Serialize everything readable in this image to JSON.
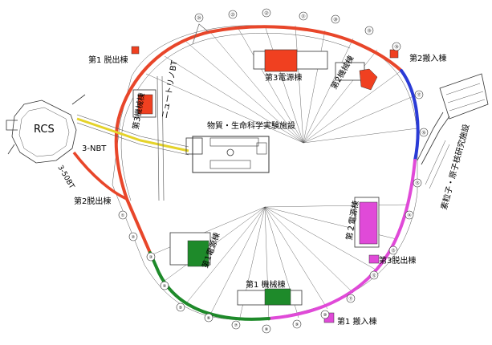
{
  "colors": {
    "arc_red": "#e8462a",
    "arc_blue": "#2a3bd6",
    "arc_magenta": "#e04ad8",
    "arc_green": "#1e8a2a",
    "transport_yellow": "#e5d32a",
    "building_red": "#f04020",
    "building_green": "#1e8a2a",
    "building_magenta": "#e04ad8"
  },
  "labels": {
    "rcs": "RCS",
    "third_power": "第3電源棟",
    "second_machine": "第2機械棟",
    "second_carry_in": "第2搬入棟",
    "first_extraction": "第1 脱出棟",
    "third_machine": "第3機械棟",
    "mlf": "物質・生命科学実験施設",
    "neutrino_bt": "ニュートリノBT",
    "nbt3": "3-NBT",
    "bt_3_50": "3-50BT",
    "second_extraction": "第2脱出棟",
    "hadron": "素粒子・原子核研究施設",
    "second_power": "第２電源棟",
    "third_extraction": "第3脱出棟",
    "first_power": "第1電源棟",
    "first_machine": "第1 機械棟",
    "first_carry_in": "第1 搬入棟"
  },
  "markers": [
    "①",
    "②",
    "③",
    "④",
    "⑤",
    "⑥",
    "⑦",
    "⑧",
    "⑨",
    "⑩",
    "⑪",
    "⑫",
    "⑬",
    "⑭",
    "⑮",
    "⑯",
    "⑰",
    "⑱",
    "⑲",
    "⑳",
    "㉑",
    "㉒",
    "㉓",
    "㉔"
  ]
}
